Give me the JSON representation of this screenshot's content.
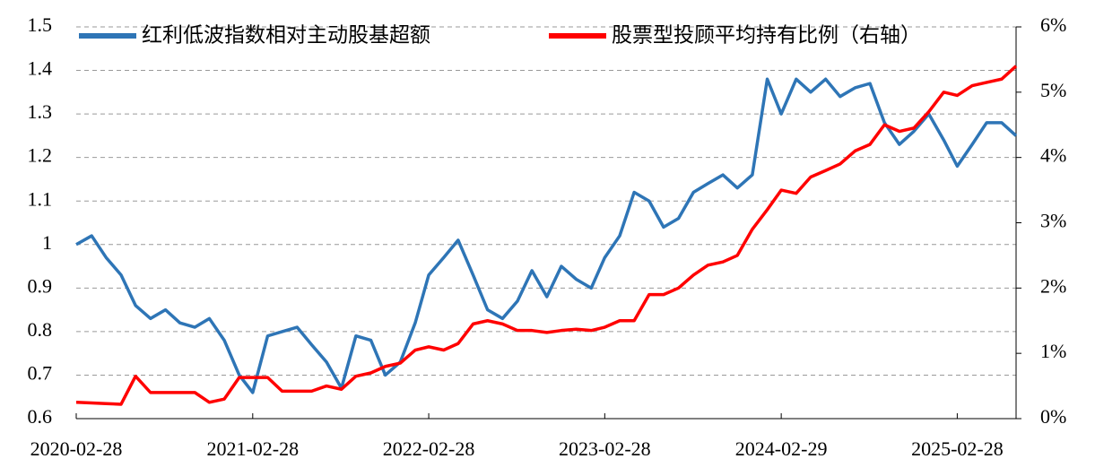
{
  "chart_data": {
    "type": "line",
    "x": [
      "2020-02-28",
      "2020-03-31",
      "2020-04-30",
      "2020-05-31",
      "2020-06-30",
      "2020-07-31",
      "2020-08-31",
      "2020-09-30",
      "2020-10-31",
      "2020-11-30",
      "2020-12-31",
      "2021-01-31",
      "2021-02-28",
      "2021-03-31",
      "2021-04-30",
      "2021-05-31",
      "2021-06-30",
      "2021-07-31",
      "2021-08-31",
      "2021-09-30",
      "2021-10-31",
      "2021-11-30",
      "2021-12-31",
      "2022-01-31",
      "2022-02-28",
      "2022-03-31",
      "2022-04-30",
      "2022-05-31",
      "2022-06-30",
      "2022-07-31",
      "2022-08-31",
      "2022-09-30",
      "2022-10-31",
      "2022-11-30",
      "2022-12-31",
      "2023-01-31",
      "2023-02-28",
      "2023-03-31",
      "2023-04-30",
      "2023-05-31",
      "2023-06-30",
      "2023-07-31",
      "2023-08-31",
      "2023-09-30",
      "2023-10-31",
      "2023-11-30",
      "2023-12-31",
      "2024-01-31",
      "2024-02-29",
      "2024-03-31",
      "2024-04-30",
      "2024-05-31",
      "2024-06-30",
      "2024-07-31",
      "2024-08-31",
      "2024-09-30",
      "2024-10-31",
      "2024-11-30",
      "2024-12-31",
      "2025-01-31",
      "2025-02-28",
      "2025-03-31",
      "2025-04-30",
      "2025-05-31",
      "2025-06-30"
    ],
    "series": [
      {
        "name": "红利低波指数相对主动股基超额",
        "color": "#2e75b6",
        "values": [
          1.0,
          1.02,
          0.97,
          0.93,
          0.86,
          0.83,
          0.85,
          0.82,
          0.81,
          0.83,
          0.78,
          0.7,
          0.66,
          0.79,
          0.8,
          0.81,
          0.77,
          0.73,
          0.67,
          0.79,
          0.78,
          0.7,
          0.73,
          0.82,
          0.93,
          0.97,
          1.01,
          0.93,
          0.85,
          0.83,
          0.87,
          0.94,
          0.88,
          0.95,
          0.92,
          0.9,
          0.97,
          1.02,
          1.12,
          1.1,
          1.04,
          1.06,
          1.12,
          1.14,
          1.16,
          1.13,
          1.16,
          1.38,
          1.3,
          1.38,
          1.35,
          1.38,
          1.34,
          1.36,
          1.37,
          1.28,
          1.23,
          1.26,
          1.3,
          1.24,
          1.18,
          1.23,
          1.28,
          1.28,
          1.25
        ]
      },
      {
        "name": "股票型投顾平均持有比例（右轴）",
        "color": "#ff0000",
        "axis": "y2",
        "values": [
          0.25,
          0.24,
          0.23,
          0.22,
          0.65,
          0.4,
          0.4,
          0.4,
          0.4,
          0.25,
          0.3,
          0.63,
          0.63,
          0.63,
          0.42,
          0.42,
          0.42,
          0.5,
          0.45,
          0.65,
          0.7,
          0.8,
          0.85,
          1.05,
          1.1,
          1.05,
          1.15,
          1.45,
          1.5,
          1.45,
          1.35,
          1.35,
          1.32,
          1.35,
          1.37,
          1.35,
          1.4,
          1.5,
          1.5,
          1.9,
          1.9,
          2.0,
          2.2,
          2.35,
          2.4,
          2.5,
          2.9,
          3.2,
          3.5,
          3.45,
          3.7,
          3.8,
          3.9,
          4.1,
          4.2,
          4.5,
          4.4,
          4.45,
          4.7,
          5.0,
          4.95,
          5.1,
          5.15,
          5.2,
          5.4
        ]
      }
    ],
    "xlim": [
      "2020-02-28",
      "2025-06-30"
    ],
    "xticks": [
      "2020-02-28",
      "2021-02-28",
      "2022-02-28",
      "2023-02-28",
      "2024-02-29",
      "2025-02-28"
    ],
    "ylim": [
      0.6,
      1.5
    ],
    "yticks": [
      0.6,
      0.7,
      0.8,
      0.9,
      1,
      1.1,
      1.2,
      1.3,
      1.4,
      1.5
    ],
    "y2lim": [
      0,
      6
    ],
    "y2ticks": [
      {
        "value": 0,
        "label": "0%"
      },
      {
        "value": 1,
        "label": "1%"
      },
      {
        "value": 2,
        "label": "2%"
      },
      {
        "value": 3,
        "label": "3%"
      },
      {
        "value": 4,
        "label": "4%"
      },
      {
        "value": 5,
        "label": "5%"
      },
      {
        "value": 6,
        "label": "6%"
      }
    ],
    "grid": true,
    "legend": "top"
  }
}
